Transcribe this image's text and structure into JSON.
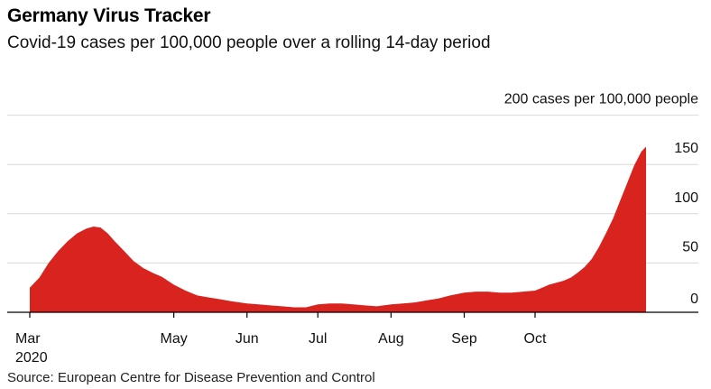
{
  "header": {
    "title": "Germany Virus Tracker",
    "subtitle": "Covid-19 cases per 100,000 people over a rolling 14-day period"
  },
  "footer": {
    "source": "Source: European Centre for Disease Prevention and Control"
  },
  "colors": {
    "area_fill": "#d8231f",
    "grid": "#d9d9d9",
    "axis": "#000000"
  },
  "chart_data": {
    "type": "area",
    "ylim": [
      0,
      200
    ],
    "y_ticks": [
      {
        "value": 0,
        "label": "0"
      },
      {
        "value": 50,
        "label": "50"
      },
      {
        "value": 100,
        "label": "100"
      },
      {
        "value": 150,
        "label": "150"
      },
      {
        "value": 200,
        "label": "200 cases per 100,000 people"
      }
    ],
    "x_range": [
      "2020-03-01",
      "2020-11-17"
    ],
    "x_ticks": [
      {
        "date": "2020-03-01",
        "label": "Mar",
        "sublabel": "2020"
      },
      {
        "date": "2020-05-01",
        "label": "May",
        "sublabel": ""
      },
      {
        "date": "2020-06-01",
        "label": "Jun",
        "sublabel": ""
      },
      {
        "date": "2020-07-01",
        "label": "Jul",
        "sublabel": ""
      },
      {
        "date": "2020-08-01",
        "label": "Aug",
        "sublabel": ""
      },
      {
        "date": "2020-09-01",
        "label": "Sep",
        "sublabel": ""
      },
      {
        "date": "2020-10-01",
        "label": "Oct",
        "sublabel": ""
      }
    ],
    "series": [
      {
        "x": [
          "2020-03-01",
          "2020-03-05",
          "2020-03-09",
          "2020-03-13",
          "2020-03-17",
          "2020-03-21",
          "2020-03-25",
          "2020-03-28",
          "2020-03-31",
          "2020-04-03",
          "2020-04-06",
          "2020-04-10",
          "2020-04-14",
          "2020-04-18",
          "2020-04-22",
          "2020-04-26",
          "2020-05-01",
          "2020-05-06",
          "2020-05-11",
          "2020-05-16",
          "2020-05-21",
          "2020-05-26",
          "2020-06-01",
          "2020-06-06",
          "2020-06-11",
          "2020-06-16",
          "2020-06-21",
          "2020-06-26",
          "2020-07-01",
          "2020-07-06",
          "2020-07-11",
          "2020-07-16",
          "2020-07-21",
          "2020-07-26",
          "2020-08-01",
          "2020-08-06",
          "2020-08-11",
          "2020-08-16",
          "2020-08-21",
          "2020-08-26",
          "2020-09-01",
          "2020-09-06",
          "2020-09-11",
          "2020-09-16",
          "2020-09-21",
          "2020-09-26",
          "2020-10-01",
          "2020-10-04",
          "2020-10-07",
          "2020-10-10",
          "2020-10-13",
          "2020-10-16",
          "2020-10-19",
          "2020-10-22",
          "2020-10-25",
          "2020-10-28",
          "2020-10-31",
          "2020-11-03",
          "2020-11-06",
          "2020-11-09",
          "2020-11-12",
          "2020-11-15",
          "2020-11-17"
        ],
        "values": [
          25,
          35,
          50,
          62,
          72,
          80,
          85,
          87,
          86,
          80,
          72,
          62,
          52,
          45,
          40,
          36,
          28,
          22,
          17,
          15,
          13,
          11,
          9,
          8,
          7,
          6,
          5,
          5,
          8,
          9,
          9,
          8,
          7,
          6,
          8,
          9,
          10,
          12,
          14,
          17,
          20,
          21,
          21,
          20,
          20,
          21,
          22,
          25,
          28,
          30,
          32,
          35,
          40,
          46,
          54,
          66,
          80,
          95,
          113,
          131,
          149,
          163,
          168
        ]
      }
    ]
  }
}
